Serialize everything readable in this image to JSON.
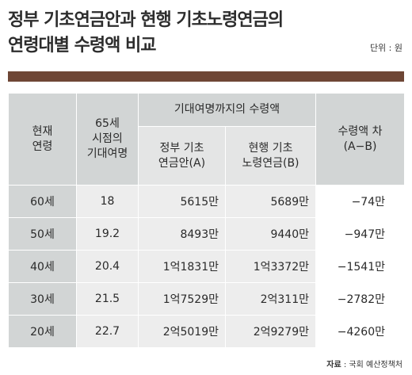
{
  "title": {
    "line1": "정부 기초연금안과 현행 기초노령연금의",
    "line2": "연령대별 수령액 비교"
  },
  "unit": "단위 : 원",
  "table": {
    "headers": {
      "current_age": [
        "현재",
        "연령"
      ],
      "life_expectancy": [
        "65세",
        "시점의",
        "기대여명"
      ],
      "group": "기대여명까지의 수령액",
      "gov_plan": [
        "정부 기초",
        "연금안(A)"
      ],
      "current_plan": [
        "현행 기초",
        "노령연금(B)"
      ],
      "difference": [
        "수령액 차",
        "(A−B)"
      ]
    },
    "rows": [
      {
        "age": "60세",
        "expectancy": "18",
        "gov": "5615만",
        "current": "5689만",
        "diff": "−74만"
      },
      {
        "age": "50세",
        "expectancy": "19.2",
        "gov": "8493만",
        "current": "9440만",
        "diff": "−947만"
      },
      {
        "age": "40세",
        "expectancy": "20.4",
        "gov": "1억1831만",
        "current": "1억3372만",
        "diff": "−1541만"
      },
      {
        "age": "30세",
        "expectancy": "21.5",
        "gov": "1억7529만",
        "current": "2억311만",
        "diff": "−2782만"
      },
      {
        "age": "20세",
        "expectancy": "22.7",
        "gov": "2억5019만",
        "current": "2억9279만",
        "diff": "−4260만"
      }
    ]
  },
  "source": {
    "label": "자료",
    "text": " : 국회 예산정책처"
  },
  "colors": {
    "top_bar": "#6e4635",
    "header_bg": "#d2d5d5",
    "subheader_bg": "#e4e5e5",
    "cell_bg": "#ededed"
  }
}
